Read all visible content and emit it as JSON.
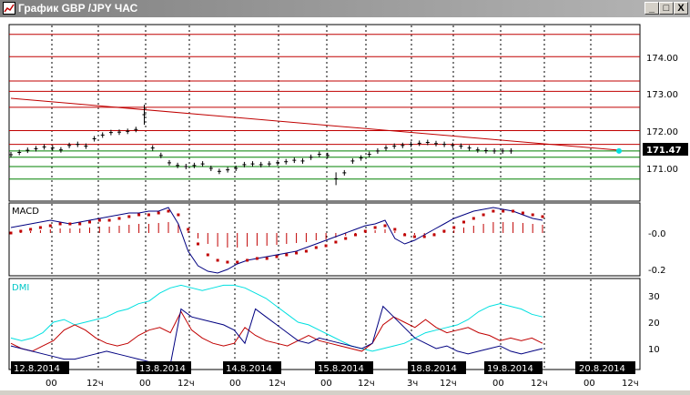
{
  "window": {
    "title": "График GBP /JPY  ЧАС",
    "buttons": {
      "minimize": "_",
      "maximize": "□",
      "close": "X"
    }
  },
  "colors": {
    "price_bars": "#000000",
    "resistance_lines": "#c00000",
    "support_lines": "#008000",
    "trend_line": "#c00000",
    "macd_line": "#000080",
    "macd_signal": "#c00000",
    "macd_histogram": "#c00000",
    "dmi_adx": "#00e0e0",
    "dmi_plus": "#c00000",
    "dmi_minus": "#000080",
    "date_label_bg": "#000000",
    "date_label_text": "#ffffff",
    "current_price_bg": "#000000"
  },
  "price_panel": {
    "y_ticks": [
      "174.00",
      "173.00",
      "172.00",
      "171.00"
    ],
    "current_price": "171.47",
    "resistance_levels": [
      174.62,
      174.02,
      173.36,
      173.08,
      172.65,
      172.02,
      171.65
    ],
    "support_levels": [
      171.47,
      171.3,
      171.05,
      170.71
    ]
  },
  "macd_panel": {
    "label": "MACD",
    "y_ticks": [
      "-0.0",
      "-0.2"
    ]
  },
  "dmi_panel": {
    "label": "DMI",
    "y_ticks": [
      "30",
      "20",
      "10"
    ]
  },
  "x_axis": {
    "date_labels": [
      "12.8.2014",
      "13.8.2014",
      "14.8.2014",
      "15.8.2014",
      "18.8.2014",
      "19.8.2014",
      "20.8.2014"
    ],
    "hour_labels": [
      "00",
      "12ч",
      "00",
      "12ч",
      "00",
      "12ч",
      "00",
      "12ч",
      "3ч",
      "12ч",
      "00",
      "12ч",
      "00",
      "12ч"
    ]
  },
  "chart_data": [
    {
      "type": "line",
      "name": "price",
      "title": "",
      "x": [
        0,
        3,
        6,
        9,
        12,
        15,
        18,
        21,
        24,
        27,
        30,
        33,
        36,
        39,
        42,
        45,
        48,
        51,
        54,
        57,
        60,
        63,
        66,
        69,
        72,
        75,
        78,
        81,
        84,
        87,
        90,
        93,
        96,
        99,
        102,
        105,
        108,
        111,
        114,
        117,
        120,
        123,
        126,
        129,
        132,
        135,
        138,
        141,
        144,
        147,
        150,
        153,
        156,
        159,
        162,
        165,
        168,
        171,
        174,
        177,
        180,
        183,
        186,
        189,
        192
      ],
      "values": [
        171.37,
        171.43,
        171.49,
        171.53,
        171.58,
        171.55,
        171.5,
        171.62,
        171.65,
        171.6,
        171.8,
        171.9,
        171.97,
        171.98,
        172.0,
        172.05,
        172.45,
        171.55,
        171.35,
        171.15,
        171.08,
        171.05,
        171.08,
        171.12,
        171.0,
        170.92,
        170.96,
        171.0,
        171.1,
        171.12,
        171.1,
        171.12,
        171.15,
        171.18,
        171.22,
        171.2,
        171.3,
        171.38,
        171.35,
        170.72,
        170.88,
        171.2,
        171.28,
        171.38,
        171.47,
        171.55,
        171.6,
        171.62,
        171.65,
        171.68,
        171.7,
        171.67,
        171.65,
        171.62,
        171.6,
        171.55,
        171.5,
        171.48,
        171.47,
        171.47,
        171.47,
        171.47,
        171.47,
        171.47,
        171.47
      ],
      "ylim": [
        170.4,
        174.8
      ]
    },
    {
      "type": "line",
      "name": "MACD",
      "series": [
        {
          "values": [
            0.03,
            0.04,
            0.05,
            0.06,
            0.07,
            0.06,
            0.05,
            0.06,
            0.07,
            0.08,
            0.09,
            0.1,
            0.11,
            0.11,
            0.12,
            0.12,
            0.14,
            0.05,
            -0.1,
            -0.18,
            -0.21,
            -0.22,
            -0.2,
            -0.17,
            -0.15,
            -0.14,
            -0.13,
            -0.12,
            -0.11,
            -0.1,
            -0.08,
            -0.06,
            -0.04,
            -0.02,
            0.0,
            0.02,
            0.04,
            0.05,
            0.07,
            -0.03,
            -0.06,
            -0.04,
            -0.01,
            0.02,
            0.05,
            0.08,
            0.1,
            0.12,
            0.13,
            0.14,
            0.13,
            0.12,
            0.1,
            0.08,
            0.07
          ]
        },
        {
          "values": [
            0.0,
            0.01,
            0.02,
            0.03,
            0.04,
            0.05,
            0.05,
            0.05,
            0.06,
            0.07,
            0.07,
            0.08,
            0.09,
            0.1,
            0.1,
            0.11,
            0.12,
            0.1,
            0.02,
            -0.06,
            -0.12,
            -0.15,
            -0.16,
            -0.16,
            -0.15,
            -0.14,
            -0.14,
            -0.13,
            -0.12,
            -0.11,
            -0.1,
            -0.08,
            -0.07,
            -0.05,
            -0.03,
            -0.01,
            0.01,
            0.03,
            0.04,
            0.02,
            -0.01,
            -0.02,
            -0.02,
            -0.01,
            0.01,
            0.03,
            0.06,
            0.08,
            0.1,
            0.12,
            0.12,
            0.12,
            0.11,
            0.1,
            0.09
          ]
        }
      ],
      "ylim": [
        -0.25,
        0.18
      ]
    },
    {
      "type": "line",
      "name": "DMI",
      "series": [
        {
          "values": [
            14,
            13,
            14,
            16,
            20,
            21,
            19,
            20,
            21,
            22,
            24,
            25,
            27,
            28,
            31,
            33,
            34,
            33,
            32,
            33,
            34,
            34,
            33,
            31,
            29,
            26,
            23,
            20,
            19,
            17,
            15,
            13,
            11,
            10,
            9,
            10,
            11,
            12,
            14,
            16,
            17,
            18,
            19,
            21,
            24,
            26,
            27,
            26,
            25,
            23,
            22
          ]
        },
        {
          "values": [
            12,
            10,
            9,
            11,
            13,
            17,
            19,
            17,
            14,
            12,
            11,
            12,
            15,
            17,
            18,
            16,
            24,
            17,
            14,
            12,
            11,
            12,
            18,
            15,
            13,
            12,
            11,
            13,
            15,
            13,
            12,
            11,
            10,
            9,
            12,
            19,
            22,
            20,
            18,
            21,
            18,
            16,
            17,
            18,
            16,
            15,
            13,
            14,
            13,
            14,
            12
          ]
        },
        {
          "values": [
            11,
            10,
            9,
            8,
            7,
            6,
            6,
            7,
            8,
            9,
            8,
            7,
            6,
            5,
            4,
            4,
            25,
            22,
            21,
            20,
            19,
            17,
            12,
            25,
            22,
            19,
            16,
            13,
            12,
            14,
            13,
            12,
            11,
            10,
            12,
            26,
            22,
            18,
            14,
            12,
            10,
            11,
            9,
            8,
            9,
            10,
            11,
            9,
            8,
            9,
            10
          ]
        }
      ],
      "ylim": [
        5,
        35
      ]
    }
  ]
}
